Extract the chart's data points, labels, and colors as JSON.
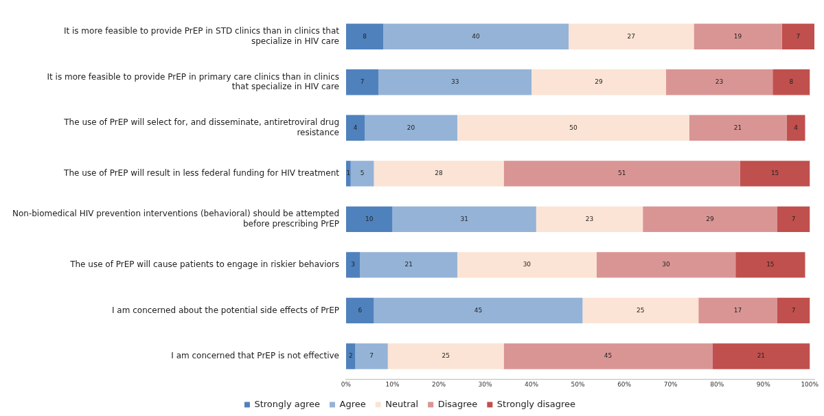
{
  "chart_data": {
    "type": "bar",
    "orientation": "horizontal",
    "stacked": true,
    "data_labels": true,
    "legend": "bottom",
    "grid": false,
    "categories": [
      "It is more feasible to provide PrEP in STD clinics than in clinics that specialize in HIV care",
      "It is more feasible to provide PrEP in primary care clinics than in clinics that specialize in HIV care",
      "The use of PrEP will select for, and disseminate, antiretroviral drug resistance",
      "The use of PrEP will result in less federal funding for HIV treatment",
      "Non-biomedical HIV prevention interventions (behavioral) should be attempted before prescribing PrEP",
      "The use of PrEP will cause patients to engage in riskier behaviors",
      "I am concerned about the potential side effects of PrEP",
      "I am concerned that PrEP is not effective"
    ],
    "series": [
      {
        "name": "Strongly agree",
        "color": "#4f81bd",
        "values": [
          8,
          7,
          4,
          1,
          10,
          3,
          6,
          2
        ]
      },
      {
        "name": "Agree",
        "color": "#95b3d7",
        "values": [
          40,
          33,
          20,
          5,
          31,
          21,
          45,
          7
        ]
      },
      {
        "name": "Neutral",
        "color": "#fbe4d5",
        "values": [
          27,
          29,
          50,
          28,
          23,
          30,
          25,
          25
        ]
      },
      {
        "name": "Disagree",
        "color": "#d99594",
        "values": [
          19,
          23,
          21,
          51,
          29,
          30,
          17,
          45
        ]
      },
      {
        "name": "Strongly disagree",
        "color": "#c0504d",
        "values": [
          7,
          8,
          4,
          15,
          7,
          15,
          7,
          21
        ]
      }
    ],
    "xlim": [
      0,
      101
    ],
    "xticks": [
      {
        "value": 0,
        "label": "0%"
      },
      {
        "value": 10,
        "label": "10%"
      },
      {
        "value": 20,
        "label": "20%"
      },
      {
        "value": 30,
        "label": "30%"
      },
      {
        "value": 40,
        "label": "40%"
      },
      {
        "value": 50,
        "label": "50%"
      },
      {
        "value": 60,
        "label": "60%"
      },
      {
        "value": 70,
        "label": "70%"
      },
      {
        "value": 80,
        "label": "80%"
      },
      {
        "value": 90,
        "label": "90%"
      },
      {
        "value": 100,
        "label": "100%"
      }
    ]
  }
}
